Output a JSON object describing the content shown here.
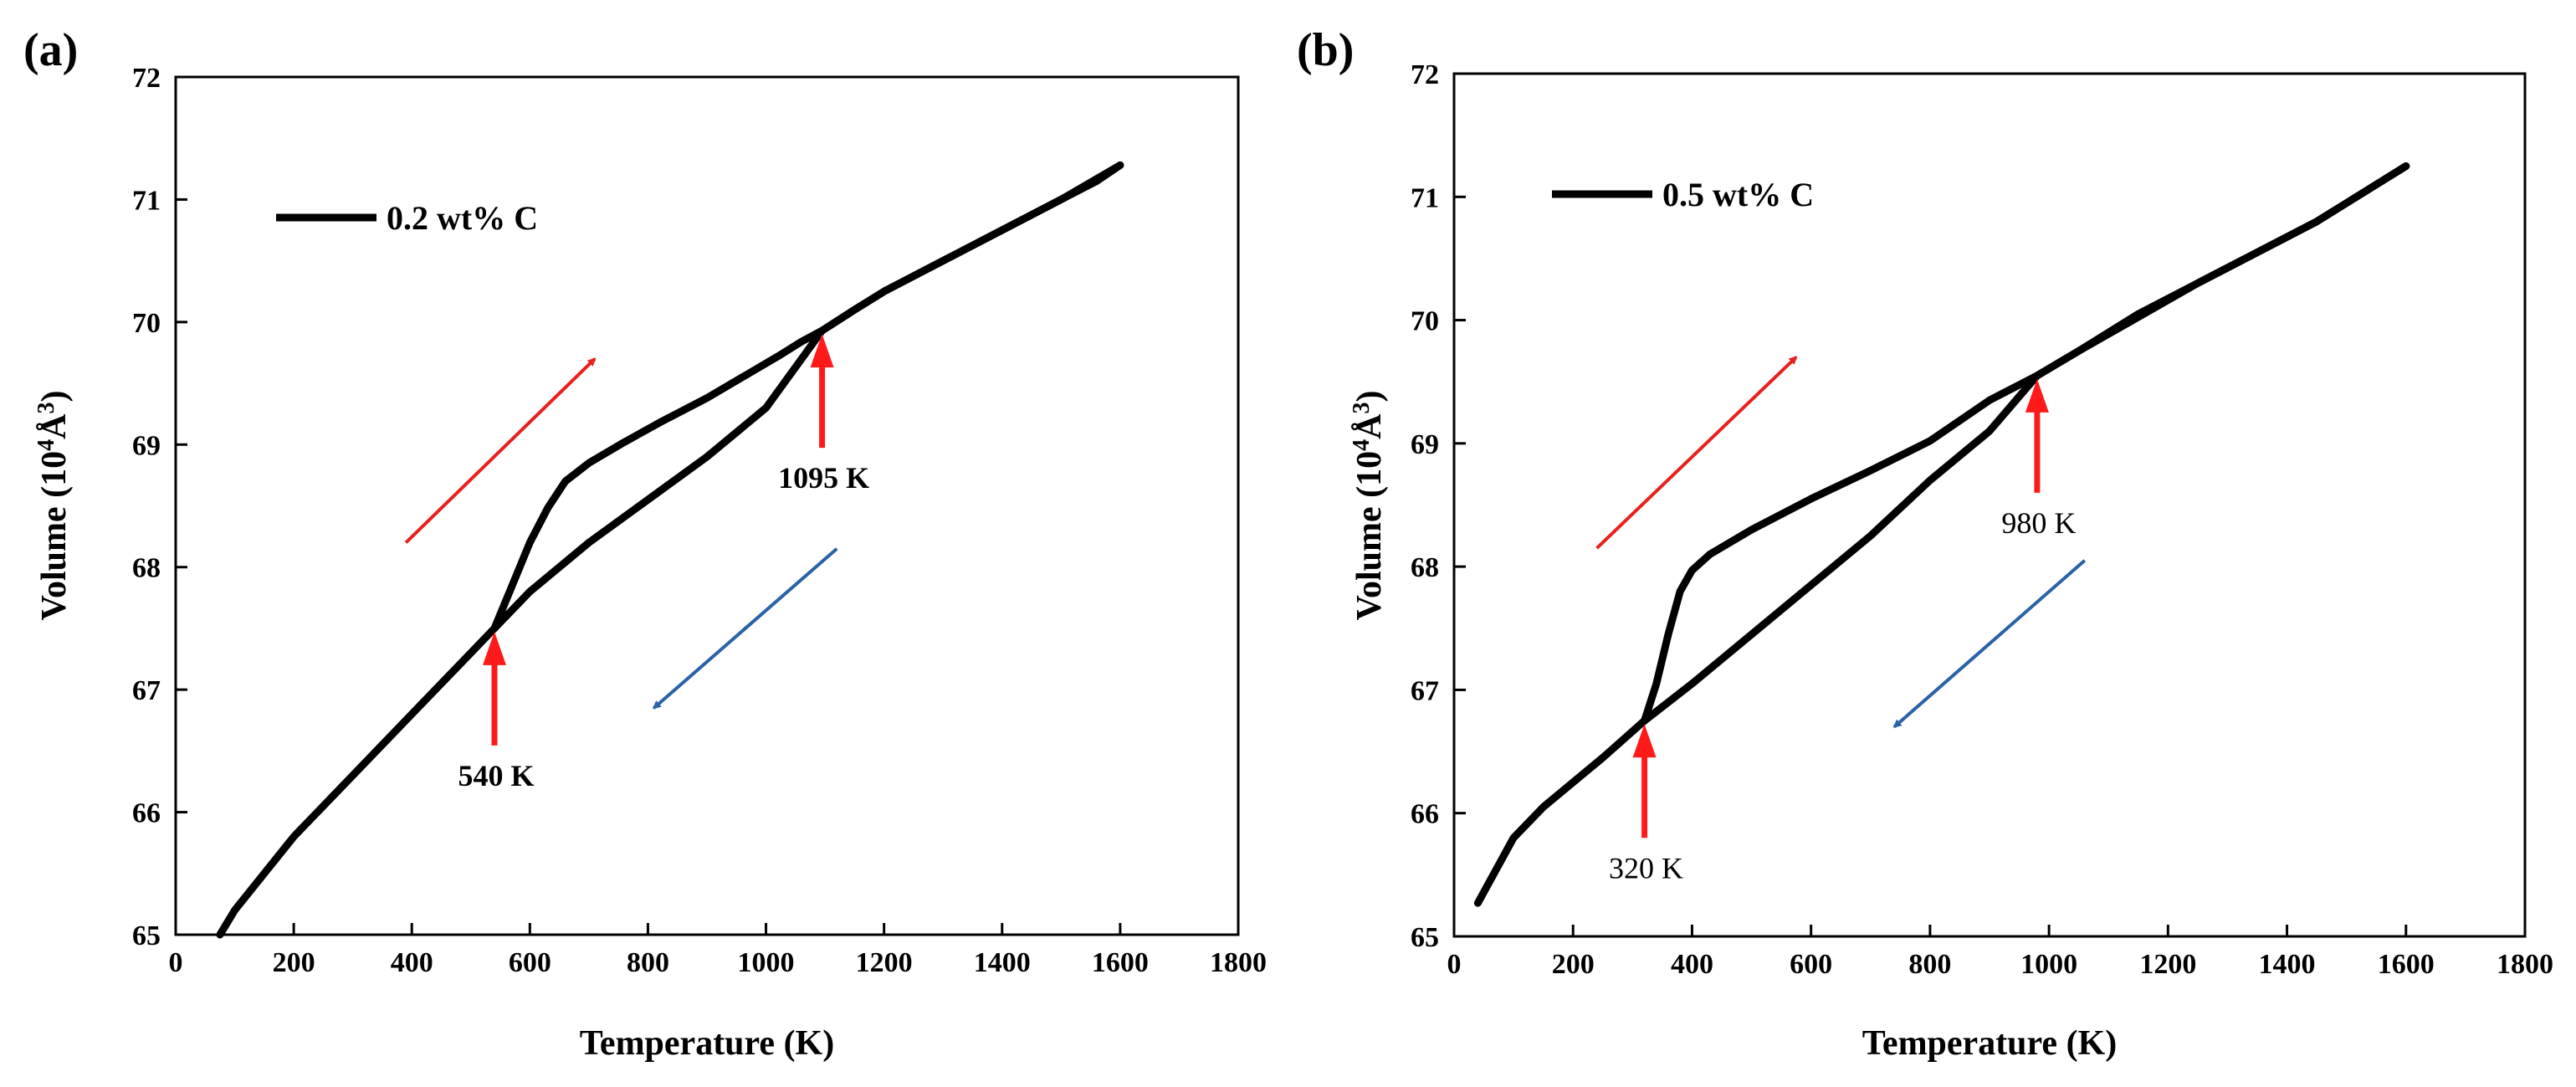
{
  "figure_labels": [
    "(a)",
    "(b)"
  ],
  "chart_data": [
    {
      "type": "line",
      "panel": "(a)",
      "xlabel": "Temperature (K)",
      "ylabel": {
        "pre": "Volume (10",
        "sup": "4",
        "post": "Å",
        "sup2": "3",
        "end": ")"
      },
      "xlim": [
        0,
        1800
      ],
      "ylim": [
        65,
        72
      ],
      "xticks": [
        "0",
        "200",
        "400",
        "600",
        "800",
        "1000",
        "1200",
        "1400",
        "1600",
        "1800"
      ],
      "yticks": [
        "65",
        "66",
        "67",
        "68",
        "69",
        "70",
        "71",
        "72"
      ],
      "legend": {
        "label": "0.2 wt% C",
        "position": "top-left"
      },
      "series": [
        {
          "name": "heating",
          "x": [
            540,
            570,
            600,
            630,
            660,
            700,
            760,
            820,
            900,
            960,
            1020,
            1060,
            1095,
            1150,
            1200,
            1300,
            1400,
            1500,
            1560,
            1600
          ],
          "y": [
            67.5,
            67.85,
            68.2,
            68.48,
            68.7,
            68.85,
            69.02,
            69.18,
            69.38,
            69.55,
            69.72,
            69.84,
            69.93,
            70.1,
            70.25,
            70.5,
            70.75,
            71.0,
            71.15,
            71.28
          ]
        },
        {
          "name": "cooling",
          "x": [
            1600,
            1500,
            1400,
            1300,
            1200,
            1150,
            1095,
            1000,
            900,
            800,
            700,
            600,
            540,
            500,
            400,
            300,
            200,
            100,
            75
          ],
          "y": [
            71.28,
            71.0,
            70.75,
            70.5,
            70.25,
            70.1,
            69.93,
            69.3,
            68.9,
            68.55,
            68.2,
            67.8,
            67.5,
            67.3,
            66.8,
            66.3,
            65.8,
            65.2,
            65.0
          ]
        }
      ],
      "annotations": [
        {
          "text": "540 K",
          "x": 540,
          "y": 67.5,
          "bold": true
        },
        {
          "text": "1095 K",
          "x": 1095,
          "y": 69.93,
          "bold": true
        }
      ],
      "direction_arrows": [
        {
          "color": "#e8201e",
          "meaning": "heating",
          "from": [
            390,
            68.2
          ],
          "to": [
            710,
            69.7
          ]
        },
        {
          "color": "#2a62a8",
          "meaning": "cooling",
          "from": [
            1120,
            68.15
          ],
          "to": [
            810,
            66.85
          ]
        }
      ]
    },
    {
      "type": "line",
      "panel": "(b)",
      "xlabel": "Temperature (K)",
      "ylabel": {
        "pre": "Volume (10",
        "sup": "4",
        "post": "Å",
        "sup2": "3",
        "end": ")"
      },
      "xlim": [
        0,
        1800
      ],
      "ylim": [
        65,
        72
      ],
      "xticks": [
        "0",
        "200",
        "400",
        "600",
        "800",
        "1000",
        "1200",
        "1400",
        "1600",
        "1800"
      ],
      "yticks": [
        "65",
        "66",
        "67",
        "68",
        "69",
        "70",
        "71",
        "72"
      ],
      "legend": {
        "label": "0.5 wt% C",
        "position": "top-left"
      },
      "series": [
        {
          "name": "heating",
          "x": [
            320,
            340,
            360,
            380,
            400,
            430,
            500,
            600,
            700,
            800,
            900,
            980,
            1050,
            1150,
            1250,
            1350,
            1450,
            1550,
            1600
          ],
          "y": [
            66.75,
            67.05,
            67.45,
            67.8,
            67.97,
            68.1,
            68.3,
            68.55,
            68.78,
            69.02,
            69.35,
            69.55,
            69.75,
            70.05,
            70.3,
            70.55,
            70.8,
            71.1,
            71.25
          ]
        },
        {
          "name": "cooling",
          "x": [
            1600,
            1450,
            1250,
            1050,
            980,
            900,
            800,
            700,
            600,
            500,
            400,
            320,
            250,
            150,
            100,
            40
          ],
          "y": [
            71.25,
            70.8,
            70.3,
            69.75,
            69.55,
            69.1,
            68.7,
            68.25,
            67.85,
            67.45,
            67.05,
            66.75,
            66.45,
            66.05,
            65.8,
            65.27
          ]
        }
      ],
      "annotations": [
        {
          "text": "320 K",
          "x": 320,
          "y": 66.75,
          "bold": false
        },
        {
          "text": "980 K",
          "x": 980,
          "y": 69.55,
          "bold": false
        }
      ],
      "direction_arrows": [
        {
          "color": "#e8201e",
          "meaning": "heating",
          "from": [
            240,
            68.15
          ],
          "to": [
            575,
            69.7
          ]
        },
        {
          "color": "#2a62a8",
          "meaning": "cooling",
          "from": [
            1060,
            68.05
          ],
          "to": [
            740,
            66.7
          ]
        }
      ]
    }
  ],
  "colors": {
    "curve": "#000000",
    "marker_arrow": "#ff1a1a",
    "heating_arrow": "#e8201e",
    "cooling_arrow": "#2a62a8"
  }
}
